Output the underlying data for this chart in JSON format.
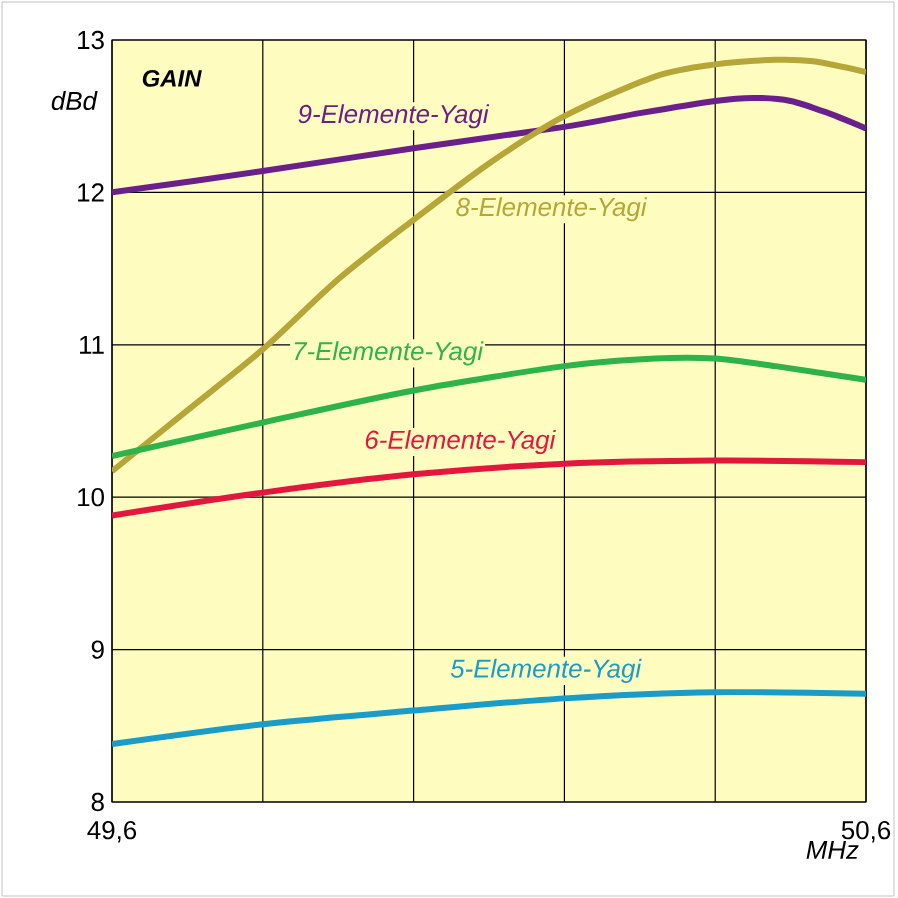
{
  "chart_data": {
    "type": "line",
    "ylabel": "dBd",
    "xlabel": "MHz",
    "annotations": [
      "GAIN"
    ],
    "xlim": [
      49.6,
      50.6
    ],
    "ylim": [
      8,
      13
    ],
    "xticks": [
      {
        "value": 49.6,
        "label": "49,6"
      },
      {
        "value": 49.8,
        "label": null
      },
      {
        "value": 50.0,
        "label": null
      },
      {
        "value": 50.2,
        "label": null
      },
      {
        "value": 50.4,
        "label": null
      },
      {
        "value": 50.6,
        "label": "50,6"
      }
    ],
    "yticks": [
      8,
      9,
      10,
      11,
      12,
      13
    ],
    "grid": true,
    "marker": "none",
    "line_style": "solid",
    "series": [
      {
        "name": "9-Elemente-Yagi",
        "color": "#6a1f8a",
        "x": [
          49.6,
          49.8,
          50.0,
          50.2,
          50.3,
          50.4,
          50.45,
          50.5,
          50.55,
          50.6
        ],
        "values": [
          12.0,
          12.14,
          12.29,
          12.43,
          12.52,
          12.6,
          12.62,
          12.6,
          12.52,
          12.42
        ]
      },
      {
        "name": "8-Elemente-Yagi",
        "color": "#b5a637",
        "x": [
          49.6,
          49.7,
          49.8,
          49.9,
          50.0,
          50.1,
          50.2,
          50.32,
          50.4,
          50.48,
          50.53,
          50.6
        ],
        "values": [
          10.17,
          10.57,
          10.97,
          11.43,
          11.82,
          12.19,
          12.5,
          12.76,
          12.84,
          12.87,
          12.86,
          12.79
        ]
      },
      {
        "name": "7-Elemente-Yagi",
        "color": "#2db34a",
        "x": [
          49.6,
          49.8,
          50.0,
          50.2,
          50.32,
          50.4,
          50.48,
          50.6
        ],
        "values": [
          10.27,
          10.49,
          10.7,
          10.86,
          10.91,
          10.91,
          10.86,
          10.77
        ]
      },
      {
        "name": "6-Elemente-Yagi",
        "color": "#e3173e",
        "x": [
          49.6,
          49.8,
          50.0,
          50.2,
          50.4,
          50.6
        ],
        "values": [
          9.88,
          10.03,
          10.15,
          10.22,
          10.24,
          10.23
        ]
      },
      {
        "name": "5-Elemente-Yagi",
        "color": "#1a9cc8",
        "x": [
          49.6,
          49.8,
          50.0,
          50.2,
          50.4,
          50.6
        ],
        "values": [
          8.38,
          8.51,
          8.6,
          8.68,
          8.72,
          8.71
        ]
      }
    ]
  }
}
